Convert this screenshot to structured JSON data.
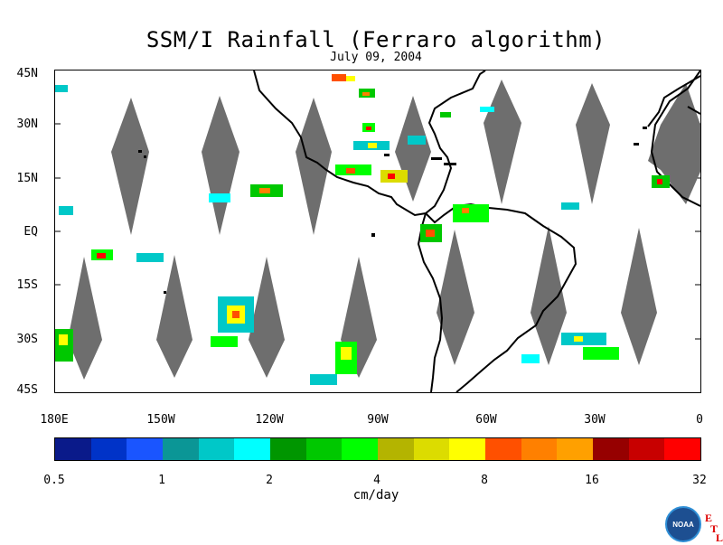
{
  "title": "SSM/I Rainfall (Ferraro algorithm)",
  "date": "July 09, 2004",
  "map": {
    "lat_labels": [
      "45N",
      "30N",
      "15N",
      "EQ",
      "15S",
      "30S",
      "45S"
    ],
    "lon_labels": [
      "180E",
      "150W",
      "120W",
      "90W",
      "60W",
      "30W",
      "0"
    ],
    "lat_range": [
      -45,
      45
    ],
    "lon_range": [
      -180,
      0
    ],
    "no_data_color": "#6e6e6e",
    "coastline_color": "#000000"
  },
  "colorbar": {
    "unit": "cm/day",
    "tick_labels": [
      "0.5",
      "1",
      "2",
      "4",
      "8",
      "16",
      "32"
    ],
    "colors": [
      "#0a1a8a",
      "#0033c8",
      "#1a55ff",
      "#0b9696",
      "#00c8c8",
      "#00ffff",
      "#009600",
      "#00c800",
      "#00ff00",
      "#b4b400",
      "#dcdc00",
      "#ffff00",
      "#ff5000",
      "#ff8000",
      "#ffa000",
      "#960000",
      "#c80000",
      "#ff0000"
    ]
  },
  "logo": {
    "text": "NOAA",
    "corner_letters": [
      "E",
      "T",
      "L"
    ]
  }
}
